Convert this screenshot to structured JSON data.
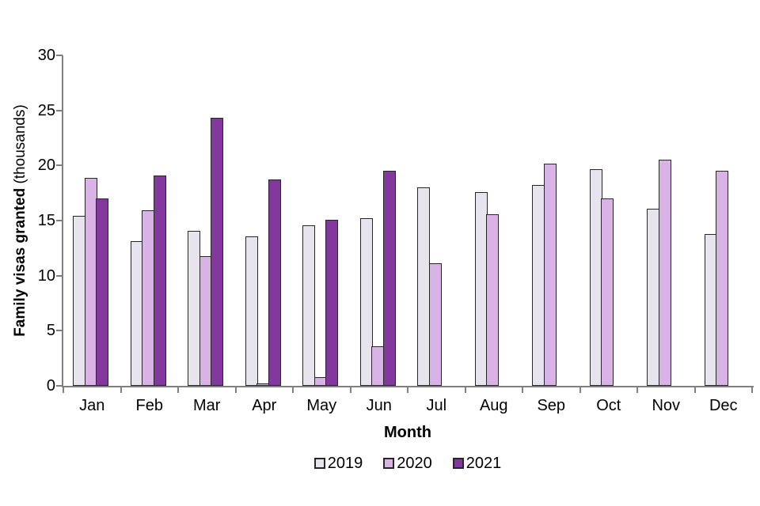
{
  "chart_data": {
    "type": "bar",
    "title": "",
    "xlabel": "Month",
    "ylabel_bold": "Family visas granted",
    "ylabel_suffix": " (thousands)",
    "categories": [
      "Jan",
      "Feb",
      "Mar",
      "Apr",
      "May",
      "Jun",
      "Jul",
      "Aug",
      "Sep",
      "Oct",
      "Nov",
      "Dec"
    ],
    "series": [
      {
        "name": "2019",
        "color": "#e8e4ee",
        "values": [
          15.4,
          13.1,
          14.1,
          13.6,
          14.6,
          15.2,
          18.0,
          17.6,
          18.2,
          19.7,
          16.1,
          13.8
        ]
      },
      {
        "name": "2020",
        "color": "#d9b3e6",
        "values": [
          18.9,
          15.9,
          11.8,
          0.1,
          0.8,
          3.6,
          11.1,
          15.6,
          20.2,
          17.0,
          20.5,
          19.5
        ]
      },
      {
        "name": "2021",
        "color": "#82389d",
        "values": [
          17.0,
          19.1,
          24.3,
          18.7,
          15.1,
          19.5,
          null,
          null,
          null,
          null,
          null,
          null
        ]
      }
    ],
    "ylim": [
      0,
      30
    ],
    "yticks": [
      0,
      5,
      10,
      15,
      20,
      25,
      30
    ],
    "grid": false,
    "legend_position": "bottom",
    "legend_labels": [
      "2019",
      "2020",
      "2021"
    ],
    "colors": {
      "axis": "#7f7f7f",
      "bar_border": "#262626",
      "text": "#000000"
    }
  }
}
